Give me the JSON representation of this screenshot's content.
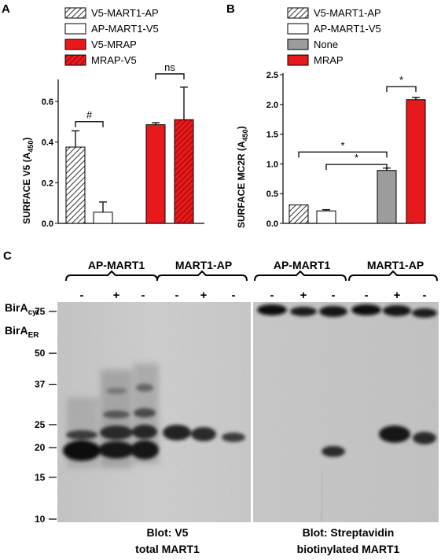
{
  "panels": {
    "a_label": "A",
    "b_label": "B",
    "c_label": "C"
  },
  "colors": {
    "red": "#e8191c",
    "gray": "#9c9c9c",
    "black": "#000000",
    "blot_bg": "#d6d6d6"
  },
  "chart_data": [
    {
      "type": "bar",
      "panel": "A",
      "ylabel_main": "SURFACE  V5  (A",
      "ylabel_sub": "450",
      "ylabel_close": ")",
      "ylim": [
        0,
        0.7
      ],
      "yticks": [
        "0.0",
        "0.2",
        "0.4",
        "0.6"
      ],
      "ytick_values": [
        0,
        0.2,
        0.4,
        0.6
      ],
      "legend": [
        {
          "label": "V5-MART1-AP",
          "style": "hatch-white"
        },
        {
          "label": "AP-MART1-V5",
          "style": "white"
        },
        {
          "label": "V5-MRAP",
          "style": "red"
        },
        {
          "label": "MRAP-V5",
          "style": "hatch-red"
        }
      ],
      "bars": [
        {
          "series": "V5-MART1-AP",
          "value": 0.375,
          "error": 0.08,
          "style": "hatch-white"
        },
        {
          "series": "AP-MART1-V5",
          "value": 0.055,
          "error": 0.05,
          "style": "white"
        },
        {
          "series": "V5-MRAP",
          "value": 0.485,
          "error": 0.01,
          "style": "red"
        },
        {
          "series": "MRAP-V5",
          "value": 0.51,
          "error": 0.16,
          "style": "hatch-red"
        }
      ],
      "significance": [
        {
          "label": "#",
          "from": 0,
          "to": 1,
          "y": 0.5
        },
        {
          "label": "ns",
          "from": 2,
          "to": 3,
          "y": 0.735
        }
      ]
    },
    {
      "type": "bar",
      "panel": "B",
      "ylabel_main": "SURFACE  MC2R (A",
      "ylabel_sub": "450",
      "ylabel_close": ")",
      "ylim": [
        0,
        2.5
      ],
      "yticks": [
        "0.0",
        "0.5",
        "1.0",
        "1.5",
        "2.0",
        "2.5"
      ],
      "ytick_values": [
        0,
        0.5,
        1.0,
        1.5,
        2.0,
        2.5
      ],
      "legend": [
        {
          "label": "V5-MART1-AP",
          "style": "hatch-white"
        },
        {
          "label": "AP-MART1-V5",
          "style": "white"
        },
        {
          "label": "None",
          "style": "gray"
        },
        {
          "label": "MRAP",
          "style": "red"
        }
      ],
      "bars": [
        {
          "series": "V5-MART1-AP",
          "value": 0.31,
          "error": 0.0,
          "style": "hatch-white"
        },
        {
          "series": "AP-MART1-V5",
          "value": 0.21,
          "error": 0.02,
          "style": "white"
        },
        {
          "series": "None",
          "value": 0.89,
          "error": 0.04,
          "style": "gray"
        },
        {
          "series": "MRAP",
          "value": 2.08,
          "error": 0.04,
          "style": "red"
        }
      ],
      "significance": [
        {
          "label": "*",
          "from": 2,
          "to": 3,
          "y": 2.3
        },
        {
          "label": "*",
          "from": 0,
          "to": 2,
          "y": 1.2
        },
        {
          "label": "*",
          "from": 1,
          "to": 2,
          "y": 0.99
        }
      ]
    }
  ],
  "blot": {
    "groups": [
      "AP-MART1",
      "MART1-AP",
      "AP-MART1",
      "MART1-AP"
    ],
    "row1_label_main": "BirA",
    "row1_label_sub": "cyt",
    "row2_label_main": "BirA",
    "row2_label_sub": "ER",
    "lanes": [
      {
        "cyt": "-",
        "er": "-"
      },
      {
        "cyt": "+",
        "er": "-"
      },
      {
        "cyt": "-",
        "er": "+"
      },
      {
        "cyt": "-",
        "er": "-"
      },
      {
        "cyt": "+",
        "er": "-"
      },
      {
        "cyt": "-",
        "er": "+"
      },
      {
        "cyt": "-",
        "er": "-"
      },
      {
        "cyt": "+",
        "er": "-"
      },
      {
        "cyt": "-",
        "er": "+"
      },
      {
        "cyt": "-",
        "er": "-"
      },
      {
        "cyt": "+",
        "er": "-"
      },
      {
        "cyt": "-",
        "er": "+"
      }
    ],
    "markers": [
      "75",
      "50",
      "37",
      "25",
      "20",
      "15",
      "10"
    ],
    "marker_kda": [
      75,
      50,
      37,
      25,
      20,
      15,
      10
    ],
    "left_caption_1": "Blot: V5",
    "left_caption_2": "total MART1",
    "right_caption_1": "Blot: Streptavidin",
    "right_caption_2": "biotinylated MART1"
  }
}
